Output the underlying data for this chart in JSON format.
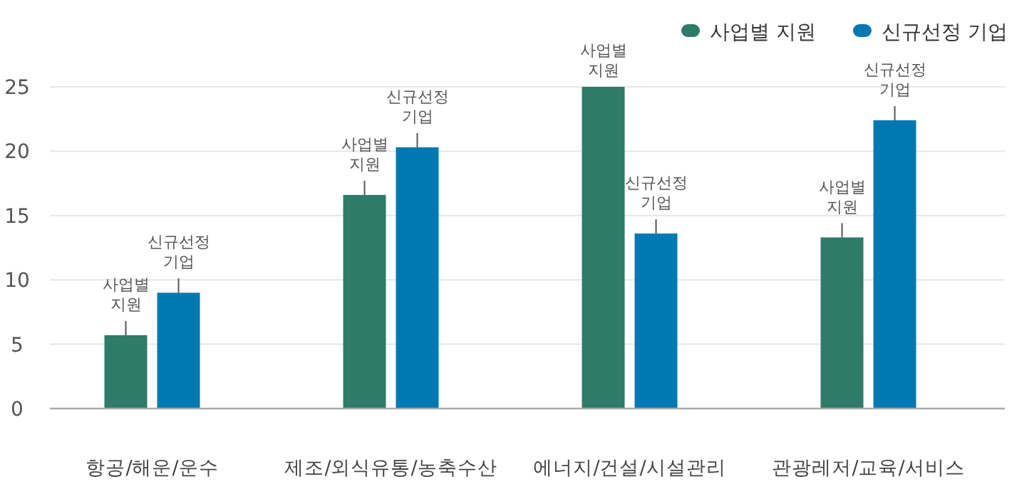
{
  "chart_data": {
    "type": "bar",
    "categories": [
      "항공/해운/운수",
      "제조/외식유통/농축수산",
      "에너지/건설/시설관리",
      "관광레저/교육/서비스"
    ],
    "series": [
      {
        "name": "사업별 지원",
        "color": "#2e7b69",
        "values": [
          5.7,
          16.6,
          25,
          13.3
        ]
      },
      {
        "name": "신규선정 기업",
        "color": "#0079b3",
        "values": [
          9.0,
          20.3,
          13.6,
          22.4
        ]
      }
    ],
    "ylim": [
      0,
      25
    ],
    "yticks": [
      0,
      5,
      10,
      15,
      20,
      25
    ],
    "grid": "y",
    "legend": "top right",
    "annotations": [
      {
        "text": "사업별 지원",
        "x": "항공/해운/운수",
        "y": 5.7
      },
      {
        "text": "신규선정 기업",
        "x": "항공/해운/운수",
        "y": 9.0
      },
      {
        "text": "사업별 지원",
        "x": "제조/외식유통/농축수산",
        "y": 16.6
      },
      {
        "text": "신규선정 기업",
        "x": "제조/외식유통/농축수산",
        "y": 20.3
      },
      {
        "text": "사업별 지원",
        "x": "에너지/건설/시설관리",
        "y": 25
      },
      {
        "text": "신규선정 기업",
        "x": "에너지/건설/시설관리",
        "y": 13.6
      },
      {
        "text": "사업별 지원",
        "x": "관광레저/교육/서비스",
        "y": 13.3
      },
      {
        "text": "신규선정 기업",
        "x": "관광레저/교육/서비스",
        "y": 22.4
      }
    ]
  }
}
